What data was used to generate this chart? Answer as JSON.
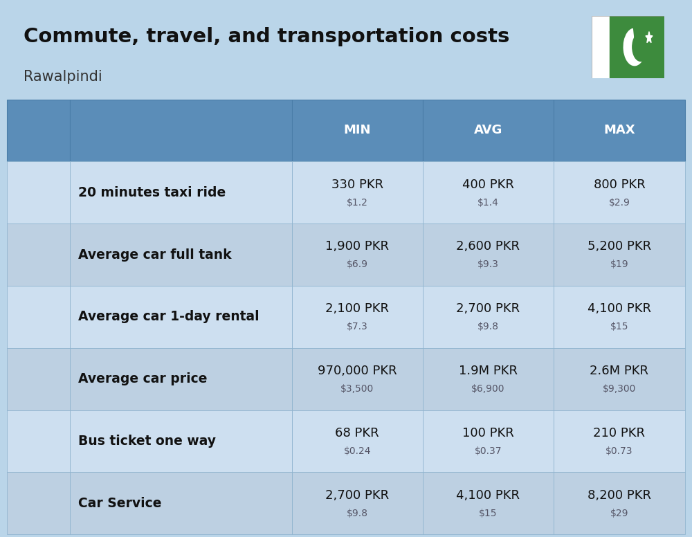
{
  "title": "Commute, travel, and transportation costs",
  "subtitle": "Rawalpindi",
  "title_fontsize": 21,
  "subtitle_fontsize": 15,
  "bg_color": "#bad5e9",
  "header_bg_color": "#5b8db8",
  "row_bg_even": "#cddff0",
  "row_bg_odd": "#bdd0e2",
  "columns": [
    "MIN",
    "AVG",
    "MAX"
  ],
  "rows": [
    {
      "label": "20 minutes taxi ride",
      "min_pkr": "330 PKR",
      "min_usd": "$1.2",
      "avg_pkr": "400 PKR",
      "avg_usd": "$1.4",
      "max_pkr": "800 PKR",
      "max_usd": "$2.9"
    },
    {
      "label": "Average car full tank",
      "min_pkr": "1,900 PKR",
      "min_usd": "$6.9",
      "avg_pkr": "2,600 PKR",
      "avg_usd": "$9.3",
      "max_pkr": "5,200 PKR",
      "max_usd": "$19"
    },
    {
      "label": "Average car 1-day rental",
      "min_pkr": "2,100 PKR",
      "min_usd": "$7.3",
      "avg_pkr": "2,700 PKR",
      "avg_usd": "$9.8",
      "max_pkr": "4,100 PKR",
      "max_usd": "$15"
    },
    {
      "label": "Average car price",
      "min_pkr": "970,000 PKR",
      "min_usd": "$3,500",
      "avg_pkr": "1.9M PKR",
      "avg_usd": "$6,900",
      "max_pkr": "2.6M PKR",
      "max_usd": "$9,300"
    },
    {
      "label": "Bus ticket one way",
      "min_pkr": "68 PKR",
      "min_usd": "$0.24",
      "avg_pkr": "100 PKR",
      "avg_usd": "$0.37",
      "max_pkr": "210 PKR",
      "max_usd": "$0.73"
    },
    {
      "label": "Car Service",
      "min_pkr": "2,700 PKR",
      "min_usd": "$9.8",
      "avg_pkr": "4,100 PKR",
      "avg_usd": "$15",
      "max_pkr": "8,200 PKR",
      "max_usd": "$29"
    }
  ]
}
